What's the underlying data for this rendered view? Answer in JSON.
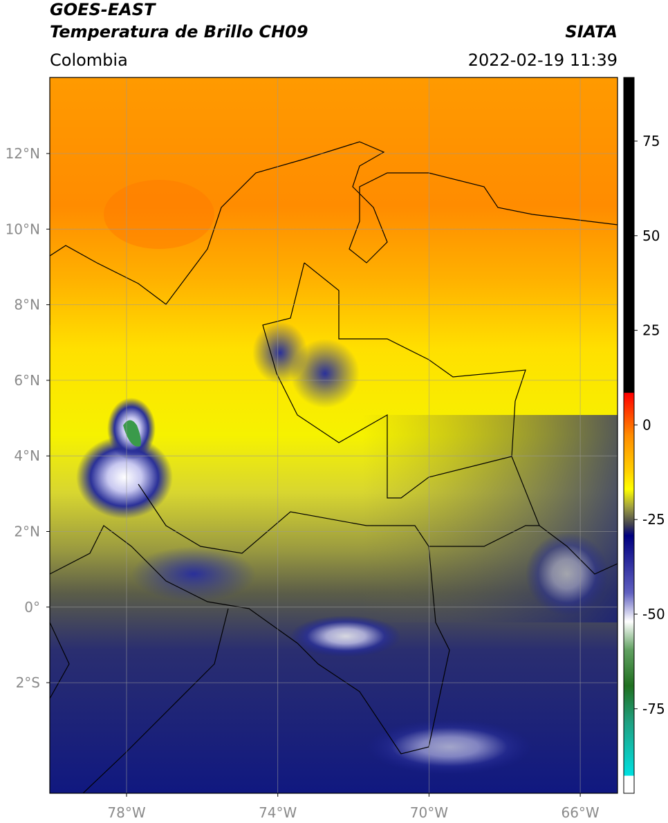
{
  "header": {
    "title_line1": "GOES-EAST",
    "title_line2": "Temperatura de Brillo CH09",
    "region": "Colombia",
    "source": "SIATA",
    "datetime": "2022-02-19 11:39"
  },
  "map": {
    "lat_labels": [
      "12°N",
      "10°N",
      "8°N",
      "6°N",
      "4°N",
      "2°N",
      "0°",
      "2°S"
    ],
    "lon_labels": [
      "78°W",
      "74°W",
      "70°W",
      "66°W"
    ]
  },
  "colorbar": {
    "tick_labels": [
      "75",
      "50",
      "25",
      "0",
      "-25",
      "-50",
      "-75"
    ]
  }
}
